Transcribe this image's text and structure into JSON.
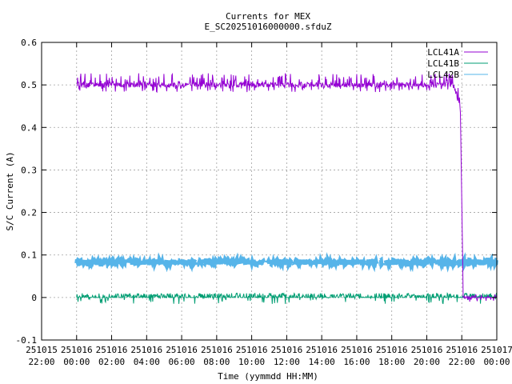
{
  "chart_data": {
    "type": "line",
    "title": "Currents for MEX",
    "subtitle": "E_SC20251016000000.sfduZ",
    "xlabel": "Time (yymmdd HH:MM)",
    "ylabel": "S/C Current (A)",
    "ylim": [
      -0.1,
      0.6
    ],
    "yticks": [
      "-0.1",
      "0",
      "0.1",
      "0.2",
      "0.3",
      "0.4",
      "0.5",
      "0.6"
    ],
    "xlim": [
      "251015 22:00",
      "251017 00:00"
    ],
    "xticks": [
      {
        "date": "251015",
        "time": "22:00"
      },
      {
        "date": "251016",
        "time": "00:00"
      },
      {
        "date": "251016",
        "time": "02:00"
      },
      {
        "date": "251016",
        "time": "04:00"
      },
      {
        "date": "251016",
        "time": "06:00"
      },
      {
        "date": "251016",
        "time": "08:00"
      },
      {
        "date": "251016",
        "time": "10:00"
      },
      {
        "date": "251016",
        "time": "12:00"
      },
      {
        "date": "251016",
        "time": "14:00"
      },
      {
        "date": "251016",
        "time": "16:00"
      },
      {
        "date": "251016",
        "time": "18:00"
      },
      {
        "date": "251016",
        "time": "20:00"
      },
      {
        "date": "251016",
        "time": "22:00"
      },
      {
        "date": "251017",
        "time": "00:00"
      }
    ],
    "grid": true,
    "legend_position": "top-right",
    "series": [
      {
        "name": "LCL41A",
        "color": "#9400d3",
        "x": [
          "251016 00:00",
          "251016 02:00",
          "251016 04:00",
          "251016 06:00",
          "251016 08:00",
          "251016 10:00",
          "251016 12:00",
          "251016 14:00",
          "251016 16:00",
          "251016 18:00",
          "251016 20:00",
          "251016 21:30",
          "251016 21:55",
          "251016 22:05",
          "251016 23:00",
          "251017 00:00"
        ],
        "values": [
          0.5,
          0.5,
          0.5,
          0.5,
          0.5,
          0.5,
          0.5,
          0.5,
          0.5,
          0.5,
          0.5,
          0.5,
          0.45,
          0.0,
          0.0,
          0.0
        ],
        "baseline": 0.497,
        "noise_range": [
          0.48,
          0.525
        ]
      },
      {
        "name": "LCL41B",
        "color": "#009e73",
        "x": [
          "251016 00:00",
          "251016 04:00",
          "251016 08:00",
          "251016 12:00",
          "251016 16:00",
          "251016 20:00",
          "251017 00:00"
        ],
        "values": [
          0.0,
          0.0,
          0.0,
          0.0,
          0.0,
          0.0,
          0.0
        ],
        "baseline": 0.0,
        "noise_range": [
          -0.015,
          0.01
        ]
      },
      {
        "name": "LCL42B",
        "color": "#56b4e9",
        "x": [
          "251016 00:00",
          "251016 04:00",
          "251016 08:00",
          "251016 12:00",
          "251016 16:00",
          "251016 20:00",
          "251017 00:00"
        ],
        "values": [
          0.083,
          0.083,
          0.083,
          0.083,
          0.083,
          0.083,
          0.083
        ],
        "baseline": 0.083,
        "noise_range": [
          0.077,
          0.09
        ]
      }
    ]
  }
}
